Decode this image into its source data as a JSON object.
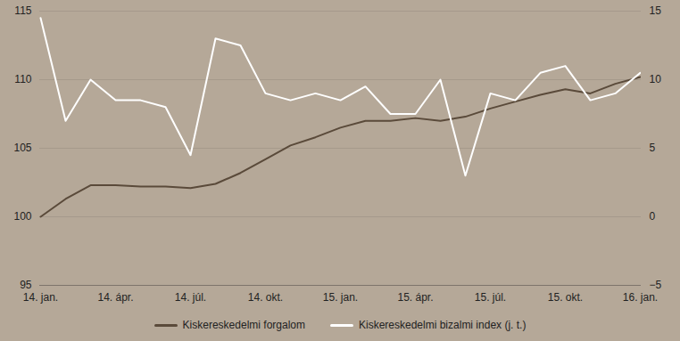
{
  "chart_data": {
    "type": "line",
    "categories": [
      "14. jan.",
      null,
      null,
      "14. ápr.",
      null,
      null,
      "14. júl.",
      null,
      null,
      "14. okt.",
      null,
      null,
      "15. jan.",
      null,
      null,
      "15. ápr.",
      null,
      null,
      "15. júl.",
      null,
      null,
      "15. okt.",
      null,
      null,
      "16. jan."
    ],
    "series": [
      {
        "name": "Kiskereskedelmi forgalom",
        "color": "#5a4a3a",
        "values": [
          100.0,
          101.3,
          102.3,
          102.3,
          102.2,
          102.2,
          102.1,
          102.4,
          103.2,
          104.2,
          105.2,
          105.8,
          106.5,
          107.0,
          107.0,
          107.2,
          107.0,
          107.3,
          107.9,
          108.4,
          108.9,
          109.3,
          109.0,
          109.7,
          110.2
        ]
      },
      {
        "name": "Kiskereskedelmi bizalmi index (j. t.)",
        "color": "#ffffff",
        "axis": "y2",
        "values": [
          14.5,
          7.0,
          10.0,
          8.5,
          8.5,
          8.0,
          4.5,
          13.0,
          12.5,
          9.0,
          8.5,
          9.0,
          8.5,
          9.5,
          7.5,
          7.5,
          10.0,
          3.0,
          9.0,
          8.5,
          10.5,
          11.0,
          8.5,
          9.0,
          10.5
        ]
      }
    ],
    "ylim": [
      95,
      115
    ],
    "yticks": [
      95,
      100,
      105,
      110,
      115
    ],
    "y2lim": [
      -5,
      15
    ],
    "y2ticks": [
      -5,
      0,
      5,
      10,
      15
    ],
    "grid": true,
    "legend": "bottom"
  }
}
